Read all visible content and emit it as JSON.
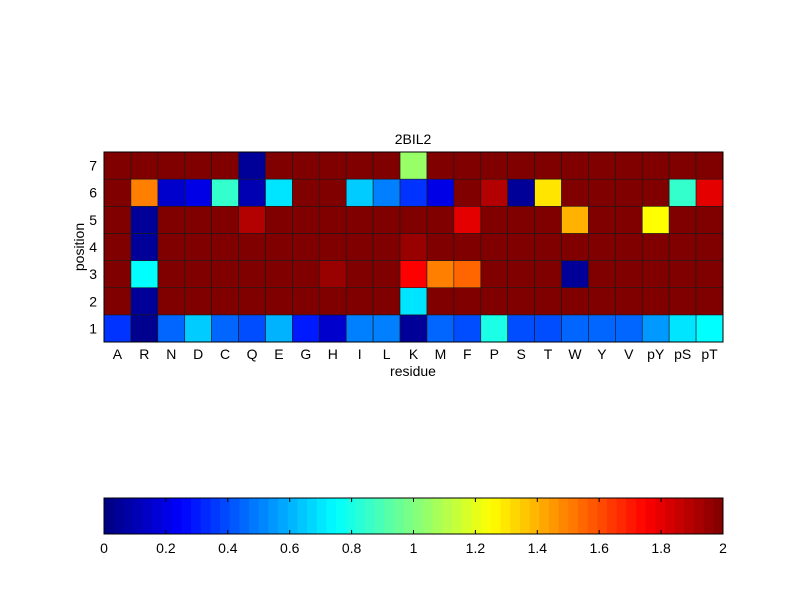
{
  "chart_data": {
    "type": "heatmap",
    "title": "2BIL2",
    "xlabel": "residue",
    "ylabel": "position",
    "x": [
      "A",
      "R",
      "N",
      "D",
      "C",
      "Q",
      "E",
      "G",
      "H",
      "I",
      "L",
      "K",
      "M",
      "F",
      "P",
      "S",
      "T",
      "W",
      "Y",
      "V",
      "pY",
      "pS",
      "pT"
    ],
    "y": [
      "1",
      "2",
      "3",
      "4",
      "5",
      "6",
      "7"
    ],
    "values": [
      [
        0.35,
        0.03,
        0.45,
        0.65,
        0.45,
        0.4,
        0.6,
        0.3,
        0.15,
        0.5,
        0.5,
        0.05,
        0.45,
        0.4,
        0.8,
        0.4,
        0.4,
        0.45,
        0.45,
        0.45,
        0.55,
        0.7,
        0.75
      ],
      [
        2.0,
        0.05,
        2.0,
        2.0,
        2.0,
        2.0,
        2.0,
        2.0,
        2.0,
        2.0,
        2.0,
        0.7,
        2.0,
        2.0,
        2.0,
        2.0,
        2.0,
        2.0,
        2.0,
        2.0,
        2.0,
        2.0,
        2.0
      ],
      [
        2.0,
        0.75,
        2.0,
        2.0,
        2.0,
        2.0,
        2.0,
        2.0,
        1.95,
        2.0,
        2.0,
        1.75,
        1.5,
        1.55,
        2.0,
        2.0,
        2.0,
        0.05,
        2.0,
        2.0,
        2.0,
        2.0,
        2.0
      ],
      [
        2.0,
        0.05,
        2.0,
        2.0,
        2.0,
        2.0,
        2.0,
        2.0,
        2.0,
        2.0,
        2.0,
        1.95,
        2.0,
        2.0,
        2.0,
        2.0,
        2.0,
        2.0,
        2.0,
        2.0,
        2.0,
        2.0,
        2.0
      ],
      [
        2.0,
        0.05,
        2.0,
        2.0,
        2.0,
        1.9,
        2.0,
        2.0,
        2.0,
        2.0,
        2.0,
        2.0,
        2.0,
        1.8,
        2.0,
        2.0,
        2.0,
        1.4,
        2.0,
        2.0,
        1.25,
        2.0,
        2.0
      ],
      [
        2.0,
        1.5,
        0.15,
        0.2,
        0.85,
        0.1,
        0.7,
        2.0,
        2.0,
        0.65,
        0.5,
        0.35,
        0.2,
        2.0,
        1.9,
        0.05,
        1.3,
        2.0,
        2.0,
        2.0,
        2.0,
        0.85,
        1.8
      ],
      [
        2.0,
        2.0,
        2.0,
        2.0,
        2.0,
        0.05,
        2.0,
        2.0,
        2.0,
        2.0,
        2.0,
        1.05,
        2.0,
        2.0,
        2.0,
        2.0,
        2.0,
        2.0,
        2.0,
        2.0,
        2.0,
        2.0,
        2.0
      ]
    ],
    "colorscale": "jet",
    "clim": [
      0,
      2
    ],
    "colorbar": {
      "orientation": "horizontal",
      "ticks": [
        "0",
        "0.2",
        "0.4",
        "0.6",
        "0.8",
        "1",
        "1.2",
        "1.4",
        "1.6",
        "1.8",
        "2"
      ],
      "tick_values": [
        0,
        0.2,
        0.4,
        0.6,
        0.8,
        1,
        1.2,
        1.4,
        1.6,
        1.8,
        2
      ]
    }
  }
}
